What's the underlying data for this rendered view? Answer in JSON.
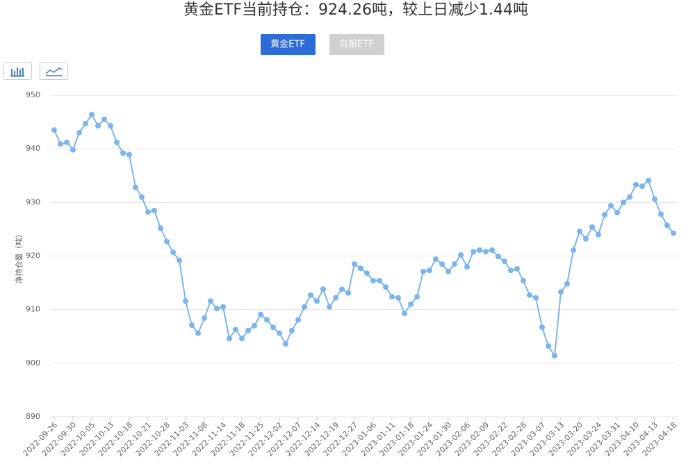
{
  "tabs": [
    "黄金ETF",
    "白银ETF"
  ],
  "chart_data": {
    "type": "line",
    "title": "黄金ETF当前持仓：924.26吨，较上日减少1.44吨",
    "y_label": "净持仓量（吨）",
    "categories": [
      "2022-09-26",
      null,
      null,
      "2022-09-30",
      null,
      null,
      "2022-10-05",
      null,
      null,
      "2022-10-13",
      null,
      null,
      "2022-10-18",
      null,
      null,
      "2022-10-21",
      null,
      null,
      "2022-10-28",
      null,
      null,
      "2022-11-03",
      null,
      null,
      "2022-11-08",
      null,
      null,
      "2022-11-14",
      null,
      null,
      "2022-11-18",
      null,
      null,
      "2022-11-25",
      null,
      null,
      "2022-12-02",
      null,
      null,
      "2022-12-07",
      null,
      null,
      "2022-12-14",
      null,
      null,
      "2022-12-19",
      null,
      null,
      "2022-12-27",
      null,
      null,
      "2023-01-06",
      null,
      null,
      "2023-01-11",
      null,
      null,
      "2023-01-18",
      null,
      null,
      "2023-01-24",
      null,
      null,
      "2023-01-30",
      null,
      null,
      "2023-02-06",
      null,
      null,
      "2023-02-09",
      null,
      null,
      "2023-02-22",
      null,
      null,
      "2023-02-28",
      null,
      null,
      "2023-03-07",
      null,
      null,
      "2023-03-13",
      null,
      null,
      "2023-03-20",
      null,
      null,
      "2023-03-24",
      null,
      null,
      "2023-03-31",
      null,
      null,
      "2023-04-10",
      null,
      null,
      "2023-04-13",
      null,
      null,
      "2023-04-18"
    ],
    "values": [
      943.5,
      940.9,
      941.2,
      939.8,
      943.0,
      944.7,
      946.4,
      944.3,
      945.5,
      944.3,
      941.2,
      939.2,
      938.9,
      932.8,
      931.0,
      928.2,
      928.5,
      925.2,
      922.7,
      920.7,
      919.2,
      911.6,
      907.1,
      905.6,
      908.4,
      911.6,
      910.2,
      910.5,
      904.6,
      906.3,
      904.6,
      906.1,
      907.0,
      909.1,
      908.1,
      906.7,
      905.6,
      903.6,
      906.1,
      908.1,
      910.5,
      912.7,
      911.6,
      913.8,
      910.5,
      912.2,
      913.8,
      913.1,
      918.5,
      917.7,
      916.8,
      915.4,
      915.4,
      914.2,
      912.4,
      912.2,
      909.3,
      911.0,
      912.4,
      917.1,
      917.3,
      919.4,
      918.5,
      917.1,
      918.5,
      920.2,
      918.0,
      920.8,
      921.1,
      920.8,
      921.1,
      919.9,
      919.0,
      917.3,
      917.6,
      915.4,
      912.7,
      912.2,
      906.7,
      903.2,
      901.4,
      913.3,
      914.8,
      921.1,
      924.6,
      923.2,
      925.4,
      924.0,
      927.7,
      929.4,
      928.1,
      930.0,
      931.0,
      933.3,
      933.0,
      934.1,
      930.6,
      927.8,
      925.7,
      924.26
    ],
    "color": "#7cb5ec",
    "ylim": [
      890,
      950
    ],
    "yticks": [
      890,
      900,
      910,
      920,
      930,
      940,
      950
    ],
    "grid": true
  }
}
